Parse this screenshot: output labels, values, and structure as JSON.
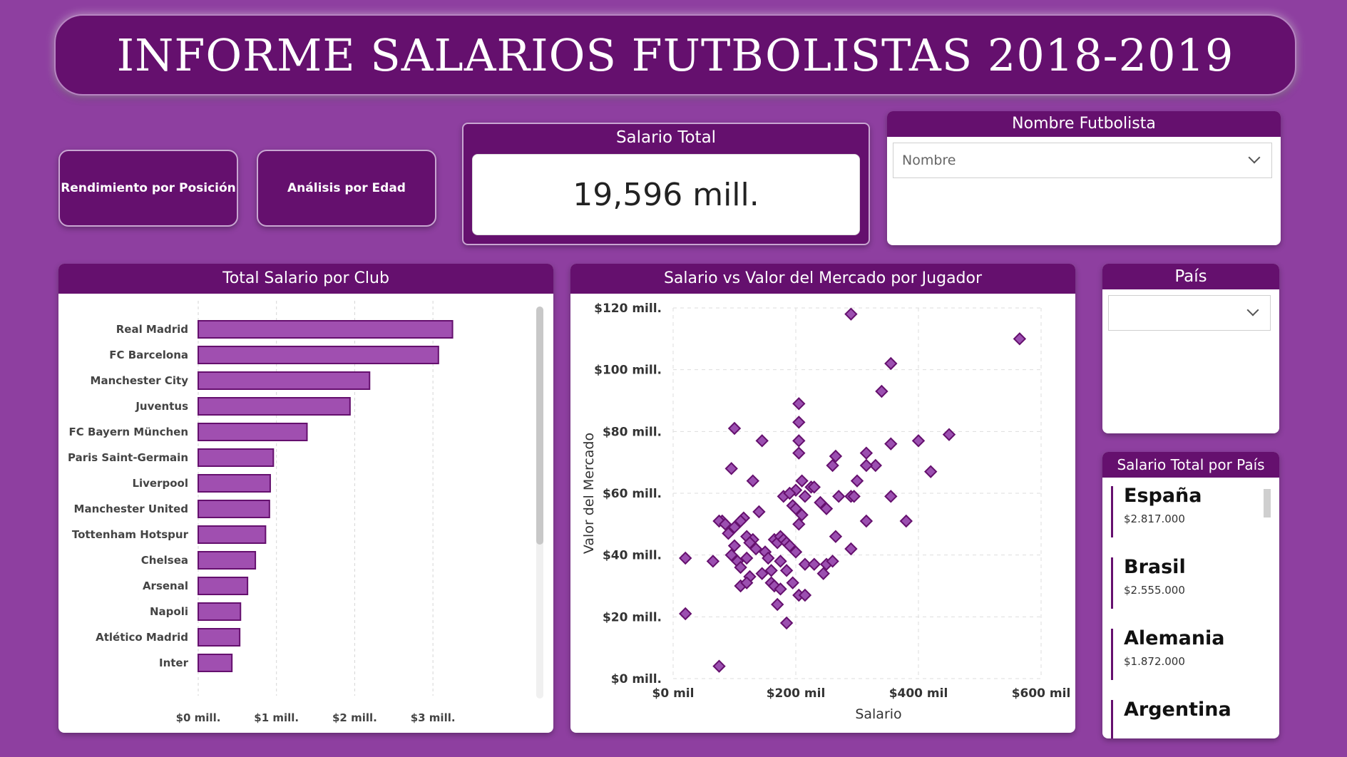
{
  "title": "INFORME SALARIOS FUTBOLISTAS 2018-2019",
  "nav": {
    "position_btn": "Rendimiento por Posición",
    "age_btn": "Análisis por Edad"
  },
  "kpi": {
    "title": "Salario Total",
    "value": "19,596 mill."
  },
  "player_filter": {
    "title": "Nombre Futbolista",
    "placeholder": "Nombre"
  },
  "country_filter": {
    "title": "País",
    "value": ""
  },
  "country_list": {
    "title": "Salario Total por País",
    "items": [
      {
        "name": "España",
        "value": "$2.817.000"
      },
      {
        "name": "Brasil",
        "value": "$2.555.000"
      },
      {
        "name": "Alemania",
        "value": "$1.872.000"
      },
      {
        "name": "Argentina",
        "value": ""
      }
    ]
  },
  "colors": {
    "background": "#8e3fa0",
    "header": "#65106e",
    "bar_fill": "#a04fb0",
    "bar_stroke": "#65106e",
    "point_fill": "#9b4fb0"
  },
  "chart_data": [
    {
      "type": "bar",
      "orientation": "horizontal",
      "title": "Total Salario por Club",
      "categories": [
        "Real Madrid",
        "FC Barcelona",
        "Manchester City",
        "Juventus",
        "FC Bayern München",
        "Paris Saint-Germain",
        "Liverpool",
        "Manchester United",
        "Tottenham Hotspur",
        "Chelsea",
        "Arsenal",
        "Napoli",
        "Atlético Madrid",
        "Inter"
      ],
      "values": [
        3.25,
        3.07,
        2.19,
        1.94,
        1.39,
        0.96,
        0.92,
        0.91,
        0.86,
        0.73,
        0.63,
        0.54,
        0.53,
        0.43
      ],
      "xticks": [
        "$0 mill.",
        "$1 mill.",
        "$2 mill.",
        "$3 mill."
      ],
      "xlim": [
        0,
        3.5
      ],
      "grid": true
    },
    {
      "type": "scatter",
      "title": "Salario vs Valor del Mercado por Jugador",
      "xlabel": "Salario",
      "ylabel": "Valor del Mercado",
      "xticks": [
        "$0 mil",
        "$200 mil",
        "$400 mil",
        "$600 mil"
      ],
      "yticks": [
        "$0 mill.",
        "$20 mill.",
        "$40 mill.",
        "$80 mill.",
        "$60 mill.",
        "$100 mill.",
        "$120 mill."
      ],
      "ytick_values": [
        0,
        20,
        40,
        80,
        60,
        100,
        120
      ],
      "xlim": [
        0,
        600
      ],
      "ylim": [
        0,
        120
      ],
      "grid": true,
      "points": [
        [
          290,
          118
        ],
        [
          565,
          110
        ],
        [
          355,
          102
        ],
        [
          340,
          93
        ],
        [
          205,
          89
        ],
        [
          205,
          83
        ],
        [
          100,
          81
        ],
        [
          145,
          77
        ],
        [
          205,
          77
        ],
        [
          205,
          73
        ],
        [
          355,
          76
        ],
        [
          400,
          77
        ],
        [
          450,
          79
        ],
        [
          315,
          73
        ],
        [
          265,
          72
        ],
        [
          260,
          69
        ],
        [
          330,
          69
        ],
        [
          315,
          69
        ],
        [
          95,
          68
        ],
        [
          420,
          67
        ],
        [
          130,
          64
        ],
        [
          210,
          64
        ],
        [
          225,
          62
        ],
        [
          230,
          62
        ],
        [
          300,
          64
        ],
        [
          200,
          61
        ],
        [
          180,
          59
        ],
        [
          190,
          60
        ],
        [
          215,
          59
        ],
        [
          270,
          59
        ],
        [
          290,
          59
        ],
        [
          295,
          59
        ],
        [
          355,
          59
        ],
        [
          240,
          57
        ],
        [
          195,
          56
        ],
        [
          200,
          55
        ],
        [
          250,
          55
        ],
        [
          210,
          53
        ],
        [
          140,
          54
        ],
        [
          115,
          52
        ],
        [
          110,
          51
        ],
        [
          80,
          51
        ],
        [
          75,
          51
        ],
        [
          85,
          50
        ],
        [
          100,
          49
        ],
        [
          205,
          50
        ],
        [
          315,
          51
        ],
        [
          380,
          51
        ],
        [
          90,
          47
        ],
        [
          120,
          46
        ],
        [
          130,
          45
        ],
        [
          165,
          45
        ],
        [
          170,
          44
        ],
        [
          175,
          46
        ],
        [
          180,
          45
        ],
        [
          185,
          44
        ],
        [
          190,
          43
        ],
        [
          265,
          46
        ],
        [
          100,
          43
        ],
        [
          125,
          44
        ],
        [
          135,
          42
        ],
        [
          200,
          41
        ],
        [
          290,
          42
        ],
        [
          20,
          39
        ],
        [
          65,
          38
        ],
        [
          95,
          40
        ],
        [
          105,
          38
        ],
        [
          120,
          39
        ],
        [
          150,
          41
        ],
        [
          155,
          39
        ],
        [
          175,
          38
        ],
        [
          215,
          37
        ],
        [
          230,
          37
        ],
        [
          250,
          37
        ],
        [
          260,
          38
        ],
        [
          110,
          36
        ],
        [
          160,
          35
        ],
        [
          185,
          35
        ],
        [
          245,
          34
        ],
        [
          125,
          33
        ],
        [
          145,
          34
        ],
        [
          160,
          31
        ],
        [
          165,
          30
        ],
        [
          110,
          30
        ],
        [
          120,
          31
        ],
        [
          175,
          29
        ],
        [
          195,
          31
        ],
        [
          205,
          27
        ],
        [
          215,
          27
        ],
        [
          170,
          24
        ],
        [
          20,
          21
        ],
        [
          185,
          18
        ],
        [
          75,
          4
        ]
      ]
    }
  ]
}
